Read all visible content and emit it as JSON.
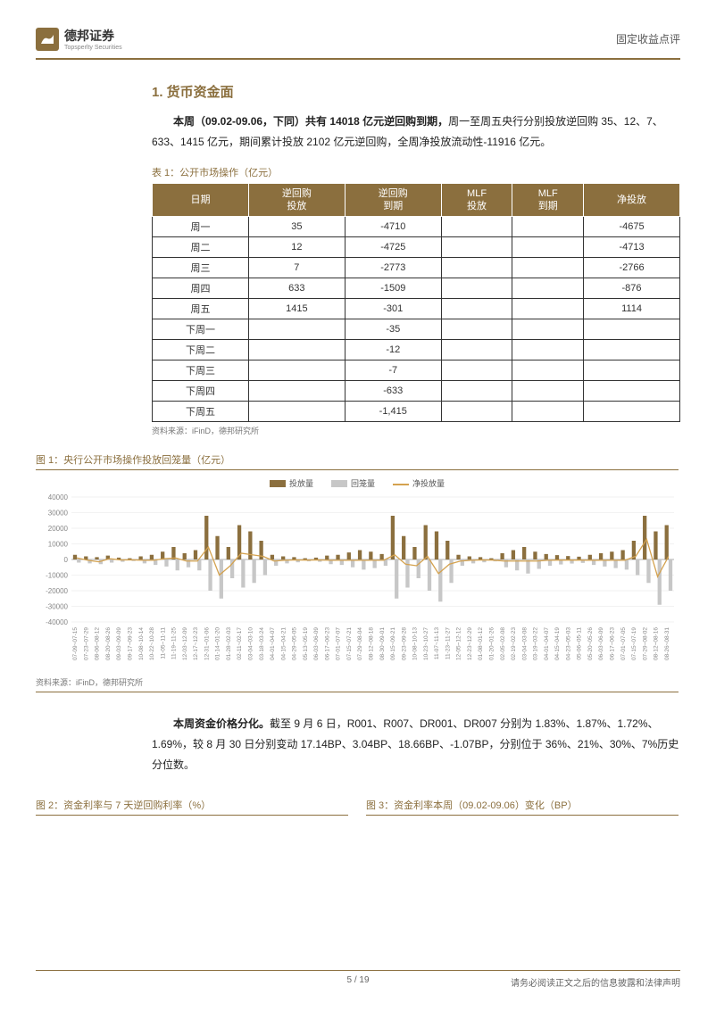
{
  "header": {
    "logo_text": "德邦证券",
    "logo_sub": "Topsperlty Securities",
    "right": "固定收益点评"
  },
  "section1": {
    "title": "1. 货币资金面",
    "para1_bold": "本周（09.02-09.06，下同）共有 14018 亿元逆回购到期，",
    "para1_rest": "周一至周五央行分别投放逆回购 35、12、7、633、1415 亿元，期间累计投放 2102 亿元逆回购，全周净投放流动性-11916 亿元。"
  },
  "table1": {
    "caption": "表 1：公开市场操作（亿元）",
    "headers": [
      "日期",
      "逆回购\n投放",
      "逆回购\n到期",
      "MLF\n投放",
      "MLF\n到期",
      "净投放"
    ],
    "rows": [
      [
        "周一",
        "35",
        "-4710",
        "",
        "",
        "-4675"
      ],
      [
        "周二",
        "12",
        "-4725",
        "",
        "",
        "-4713"
      ],
      [
        "周三",
        "7",
        "-2773",
        "",
        "",
        "-2766"
      ],
      [
        "周四",
        "633",
        "-1509",
        "",
        "",
        "-876"
      ],
      [
        "周五",
        "1415",
        "-301",
        "",
        "",
        "1114"
      ],
      [
        "下周一",
        "",
        "-35",
        "",
        "",
        ""
      ],
      [
        "下周二",
        "",
        "-12",
        "",
        "",
        ""
      ],
      [
        "下周三",
        "",
        "-7",
        "",
        "",
        ""
      ],
      [
        "下周四",
        "",
        "-633",
        "",
        "",
        ""
      ],
      [
        "下周五",
        "",
        "-1,415",
        "",
        "",
        ""
      ]
    ],
    "source": "资料来源：iFinD，德邦研究所"
  },
  "fig1": {
    "caption": "图 1：央行公开市场操作投放回笼量（亿元）",
    "legend": [
      "投放量",
      "回笼量",
      "净投放量"
    ],
    "colors": {
      "series1": "#8b6f3e",
      "series2": "#c7c7c7",
      "series3": "#d4a24f",
      "grid": "#e5e5e5",
      "axis_text": "#888888"
    },
    "ylim": [
      -40000,
      40000
    ],
    "ytick_step": 10000,
    "x_labels": [
      "07-09~07-15",
      "07-23~07-29",
      "08-06~08-12",
      "08-20~08-26",
      "09-03~09-09",
      "09-17~09-23",
      "10-08~10-14",
      "10-22~10-28",
      "11-05~11-11",
      "11-19~11-25",
      "12-03~12-09",
      "12-17~12-23",
      "12-31~01-06",
      "01-14~01-20",
      "01-28~02-03",
      "02-11~02-17",
      "03-04~03-10",
      "03-18~03-24",
      "04-01~04-07",
      "04-15~04-21",
      "04-29~05-05",
      "05-13~05-19",
      "06-03~06-09",
      "06-17~06-23",
      "07-01~07-07",
      "07-15~07-21",
      "07-29~08-04",
      "08-12~08-18",
      "08-30~09-01",
      "09-15~09-21",
      "09-23~09-28",
      "10-08~10-13",
      "10-23~10-27",
      "11-07~11-13",
      "11-23~11-27",
      "12-05~12-12",
      "12-23~12-29",
      "01-08~01-12",
      "01-20~01-26",
      "02-05~02-08",
      "02-19~02-23",
      "03-04~03-08",
      "03-19~03-22",
      "04-01~04-07",
      "04-15~04-19",
      "04-23~05-03",
      "05-06~05-11",
      "05-20~05-26",
      "06-03~06-09",
      "06-17~06-23",
      "07-01~07-05",
      "07-15~07-19",
      "07-29~08-02",
      "08-12~08-16",
      "08-26~08-31"
    ],
    "series1": [
      3000,
      2000,
      1500,
      2500,
      1200,
      800,
      2000,
      3000,
      5000,
      8000,
      4000,
      6000,
      28000,
      15000,
      8000,
      22000,
      18000,
      12000,
      3000,
      2000,
      1500,
      800,
      1200,
      2500,
      3000,
      4500,
      6000,
      5000,
      3500,
      28000,
      15000,
      8000,
      22000,
      18000,
      12000,
      3000,
      2000,
      1500,
      800,
      4000,
      6000,
      8000,
      5000,
      3500,
      2800,
      2200,
      1800,
      3000,
      4000,
      5000,
      6000,
      12000,
      28000,
      18000,
      22000
    ],
    "series2": [
      -2000,
      -2500,
      -3000,
      -2000,
      -1500,
      -1000,
      -2500,
      -3500,
      -4500,
      -7000,
      -5000,
      -7000,
      -20000,
      -25000,
      -12000,
      -18000,
      -15000,
      -10000,
      -4000,
      -2500,
      -1800,
      -1200,
      -1500,
      -3000,
      -3500,
      -5000,
      -6500,
      -5500,
      -4000,
      -25000,
      -18000,
      -12000,
      -20000,
      -27000,
      -15000,
      -4000,
      -2500,
      -1800,
      -1200,
      -5000,
      -7000,
      -9000,
      -6000,
      -4000,
      -3200,
      -2600,
      -2200,
      -3500,
      -4500,
      -5500,
      -6500,
      -10000,
      -15000,
      -29000,
      -20000
    ],
    "series3": [
      1000,
      -500,
      -1500,
      500,
      -300,
      -200,
      -500,
      -500,
      500,
      1000,
      -1000,
      -1000,
      8000,
      -10000,
      -4000,
      4000,
      3000,
      2000,
      -1000,
      -500,
      -300,
      -400,
      -300,
      -500,
      -500,
      -500,
      -500,
      -500,
      -500,
      3000,
      -3000,
      -4000,
      2000,
      -9000,
      -3000,
      -1000,
      -500,
      -300,
      -400,
      -1000,
      -1000,
      -1000,
      -1000,
      -500,
      -400,
      -400,
      -400,
      -500,
      -500,
      -500,
      -500,
      2000,
      13000,
      -11000,
      2000
    ],
    "source": "资料来源：iFinD，德邦研究所"
  },
  "section2": {
    "para2_bold": "本周资金价格分化。",
    "para2_rest": "截至 9 月 6 日，R001、R007、DR001、DR007 分别为 1.83%、1.87%、1.72%、1.69%，较 8 月 30 日分别变动 17.14BP、3.04BP、18.66BP、-1.07BP，分别位于 36%、21%、30%、7%历史分位数。"
  },
  "fig2": {
    "caption": "图 2：资金利率与 7 天逆回购利率（%）"
  },
  "fig3": {
    "caption": "图 3：资金利率本周（09.02-09.06）变化（BP）"
  },
  "footer": {
    "page": "5 / 19",
    "disclaimer": "请务必阅读正文之后的信息披露和法律声明"
  }
}
